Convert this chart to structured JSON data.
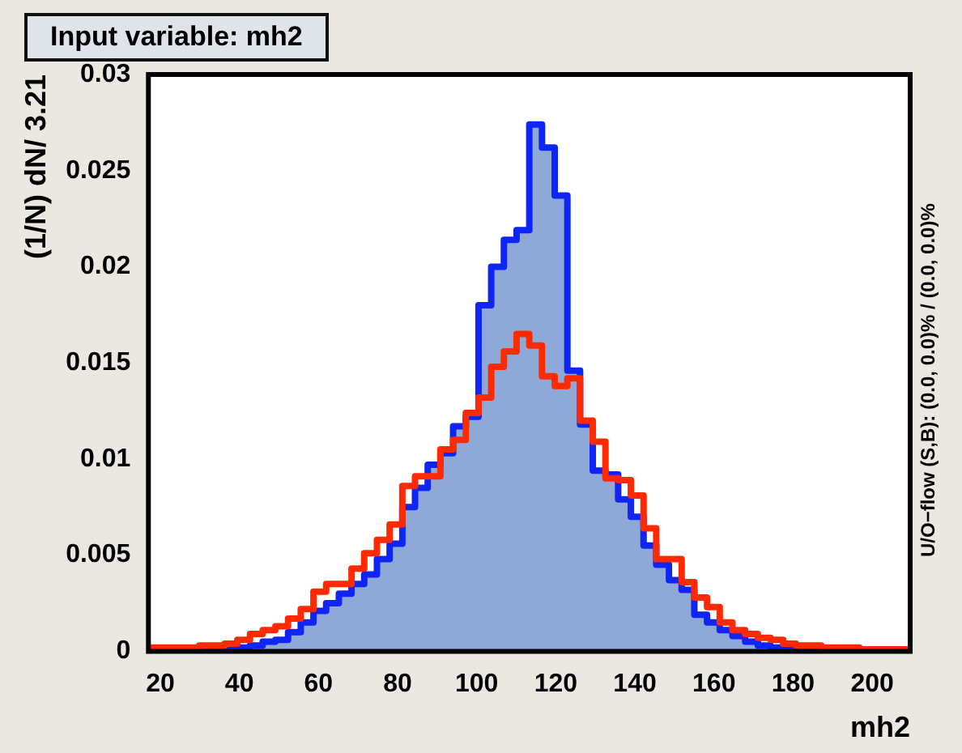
{
  "chart_data": {
    "type": "histogram",
    "title": "Input variable: mh2",
    "xlabel": "mh2",
    "ylabel": "(1/N) dN/ 3.21",
    "annotations": [
      "U/O−flow (S,B): (0.0, 0.0)% / (0.0, 0.0)%"
    ],
    "bins": [
      17.0,
      20.21,
      23.42,
      26.63,
      29.84,
      33.05,
      36.26,
      39.47,
      42.68,
      45.89,
      49.1,
      52.31,
      55.52,
      58.73,
      61.94,
      65.15,
      68.36,
      71.57,
      74.78,
      77.99,
      81.2,
      84.41,
      87.62,
      90.83,
      94.04,
      97.25,
      100.46,
      103.67,
      106.88,
      110.09,
      113.3,
      116.51,
      119.72,
      122.93,
      126.14,
      129.35,
      132.56,
      135.77,
      138.98,
      142.19,
      145.4,
      148.61,
      151.82,
      155.03,
      158.24,
      161.45,
      164.66,
      167.87,
      171.08,
      174.29,
      177.5,
      180.71,
      183.92,
      187.13,
      190.34,
      193.55,
      196.76,
      199.97,
      203.18,
      206.39,
      209.6
    ],
    "series": [
      {
        "color": "#8ea8d8",
        "values": [
          0,
          0,
          0,
          0,
          0.0001,
          0.0001,
          0.0001,
          0.0002,
          0.0003,
          0.0005,
          0.0006,
          0.001,
          0.0015,
          0.0021,
          0.0025,
          0.003,
          0.0035,
          0.004,
          0.0048,
          0.0056,
          0.0075,
          0.0085,
          0.0097,
          0.0103,
          0.0117,
          0.0122,
          0.018,
          0.02,
          0.0214,
          0.0219,
          0.0274,
          0.0262,
          0.0237,
          0.0146,
          0.0118,
          0.0094,
          0.0092,
          0.0079,
          0.007,
          0.0055,
          0.0045,
          0.0037,
          0.0032,
          0.0019,
          0.0015,
          0.0011,
          0.0008,
          0.0005,
          0.0003,
          0.0002,
          0.0002,
          0.0001,
          0.0001,
          0.0001,
          0.0001,
          0,
          0,
          0,
          0,
          0
        ]
      },
      {
        "color": "#ff2a00",
        "values": [
          0.0002,
          0.0002,
          0.0002,
          0.0002,
          0.0003,
          0.0003,
          0.0004,
          0.0006,
          0.0009,
          0.0011,
          0.0013,
          0.0017,
          0.0022,
          0.0031,
          0.0035,
          0.0035,
          0.0043,
          0.0051,
          0.0058,
          0.0066,
          0.0086,
          0.0091,
          0.0091,
          0.0105,
          0.011,
          0.0124,
          0.0132,
          0.0148,
          0.0156,
          0.0165,
          0.0159,
          0.0143,
          0.0138,
          0.0142,
          0.012,
          0.0109,
          0.009,
          0.0089,
          0.0081,
          0.0064,
          0.0048,
          0.0048,
          0.0036,
          0.0028,
          0.0023,
          0.0015,
          0.0011,
          0.0009,
          0.0007,
          0.0006,
          0.0004,
          0.0003,
          0.0003,
          0.0002,
          0.0002,
          0.0002,
          0.0001,
          0.0001,
          0.0001,
          0.0001
        ]
      }
    ],
    "xlim": [
      17.0,
      209.6
    ],
    "ylim": [
      0,
      0.03
    ],
    "xticks": [
      20,
      40,
      60,
      80,
      100,
      120,
      140,
      160,
      180,
      200
    ],
    "yticks": [
      0,
      0.005,
      0.01,
      0.015,
      0.02,
      0.025,
      0.03
    ],
    "grid": false,
    "legend": false
  }
}
